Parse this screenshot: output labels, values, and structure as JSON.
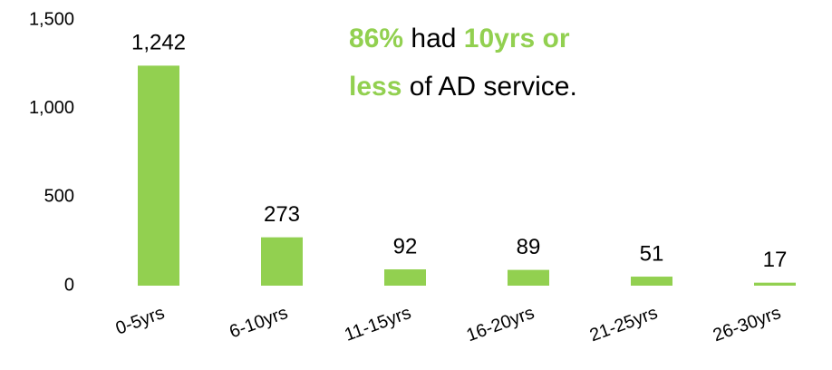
{
  "chart_data": {
    "type": "bar",
    "categories": [
      "0-5yrs",
      "6-10yrs",
      "11-15yrs",
      "16-20yrs",
      "21-25yrs",
      "26-30yrs"
    ],
    "values": [
      1242,
      273,
      92,
      89,
      51,
      17
    ],
    "value_labels": [
      "1,242",
      "273",
      "92",
      "89",
      "51",
      "17"
    ],
    "color": "#92d050",
    "ylim": [
      0,
      1500
    ],
    "yticks": [
      0,
      500,
      {
        "value": 1000,
        "label": "1,000"
      },
      {
        "value": 1500,
        "label": "1,500"
      }
    ],
    "grid": false,
    "annotation": [
      [
        {
          "text": "86%",
          "color": "#92d050",
          "bold": true
        },
        {
          "text": " had ",
          "color": "#000000",
          "bold": false
        },
        {
          "text": "10yrs or",
          "color": "#92d050",
          "bold": true
        }
      ],
      [
        {
          "text": "less",
          "color": "#92d050",
          "bold": true
        },
        {
          "text": " of AD service.",
          "color": "#000000",
          "bold": false
        }
      ]
    ]
  }
}
